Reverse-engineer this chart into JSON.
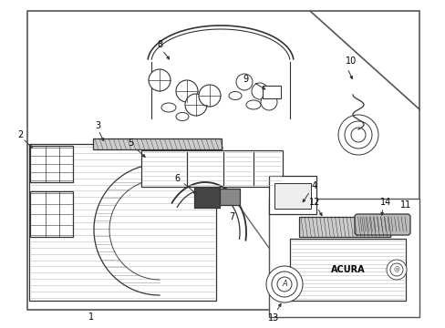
{
  "bg": "#ffffff",
  "lc": "#333333",
  "lw": 0.9,
  "figsize": [
    4.89,
    3.6
  ],
  "dpi": 100
}
